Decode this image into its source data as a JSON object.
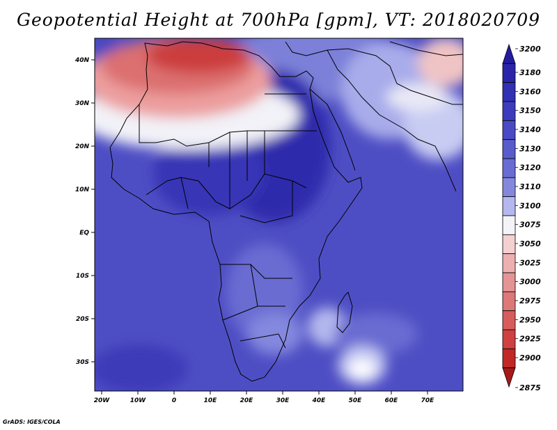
{
  "title": "Geopotential Height at 700hPa [gpm], VT: 2018020709",
  "credit": "GrADS: IGES/COLA",
  "map": {
    "lon_labels": [
      "20W",
      "10W",
      "0",
      "10E",
      "20E",
      "30E",
      "40E",
      "50E",
      "60E",
      "70E"
    ],
    "lat_labels": [
      "40N",
      "30N",
      "20N",
      "10N",
      "EQ",
      "10S",
      "20S",
      "30S"
    ]
  },
  "colorbar": {
    "levels": [
      "3200",
      "3180",
      "3160",
      "3150",
      "3140",
      "3130",
      "3120",
      "3110",
      "3100",
      "3075",
      "3050",
      "3025",
      "3000",
      "2975",
      "2950",
      "2925",
      "2900",
      "2875"
    ],
    "colors": [
      "#241ca0",
      "#2b24aa",
      "#3430b4",
      "#3e3cbc",
      "#4a4ac4",
      "#5a5ccc",
      "#6a6cd4",
      "#8488dc",
      "#b4b8ee",
      "#f4f4f8",
      "#f4d0d0",
      "#ecb0b0",
      "#e49494",
      "#dc7878",
      "#d85c5c",
      "#d04040",
      "#c02828",
      "#a81818"
    ]
  }
}
